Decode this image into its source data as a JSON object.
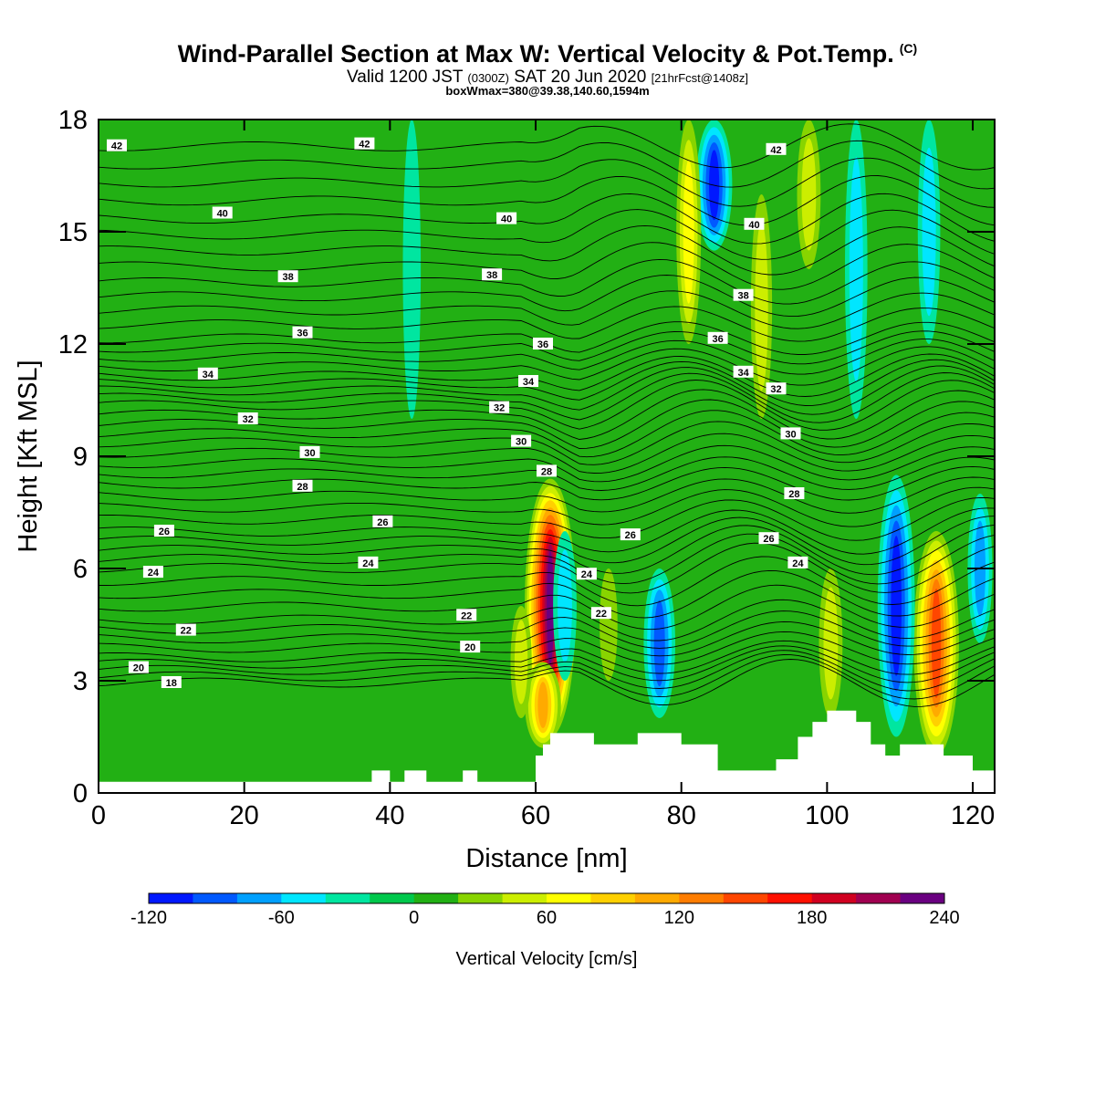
{
  "header": {
    "title": "Wind-Parallel Section at Max W: Vertical Velocity & Pot.Temp.",
    "copyright": "(C)",
    "valid_prefix": "Valid 1200 JST",
    "valid_utc": "(0300Z)",
    "valid_date": "SAT 20 Jun 2020",
    "forecast": "[21hrFcst@1408z]",
    "box_info": "boxWmax=380@39.38,140.60,1594m"
  },
  "chart_data": {
    "type": "heatmap",
    "xlabel": "Distance [nm]",
    "ylabel": "Height [Kft MSL]",
    "xlim": [
      0,
      123
    ],
    "ylim": [
      0,
      18
    ],
    "x_ticks": [
      0,
      20,
      40,
      60,
      80,
      100,
      120
    ],
    "y_ticks": [
      0,
      3,
      6,
      9,
      12,
      15,
      18
    ],
    "colorbar": {
      "label": "Vertical Velocity [cm/s]",
      "ticks": [
        "-120",
        "-60",
        "0",
        "60",
        "120",
        "180",
        "240"
      ],
      "levels": [
        -120,
        -100,
        -80,
        -60,
        -40,
        -20,
        0,
        20,
        40,
        60,
        80,
        100,
        120,
        140,
        160,
        180,
        200,
        220,
        240
      ],
      "colors": [
        "#0018ff",
        "#0059ff",
        "#00a0ff",
        "#00e6ff",
        "#00e6a0",
        "#00c84c",
        "#22b014",
        "#88d400",
        "#ccee00",
        "#ffff00",
        "#ffd000",
        "#ffaa00",
        "#ff7d00",
        "#ff4600",
        "#ff1000",
        "#d00020",
        "#a00050",
        "#6a0080"
      ]
    },
    "background_value": 0,
    "features": [
      {
        "x": 62,
        "z_bottom": 1.5,
        "z_top": 8.4,
        "w": 235
      },
      {
        "x": 61,
        "z_bottom": 1.2,
        "z_top": 3.5,
        "w": 110
      },
      {
        "x": 115,
        "z_bottom": 1.0,
        "z_top": 7.0,
        "w": 150
      },
      {
        "x": 109.5,
        "z_bottom": 1.5,
        "z_top": 8.5,
        "w": -115
      },
      {
        "x": 84.5,
        "z_bottom": 14.5,
        "z_top": 18,
        "w": -110
      },
      {
        "x": 77,
        "z_bottom": 2.0,
        "z_top": 6.0,
        "w": -90
      },
      {
        "x": 64,
        "z_bottom": 3.0,
        "z_top": 7.0,
        "w": -55
      },
      {
        "x": 81,
        "z_bottom": 12.0,
        "z_top": 18,
        "w": 60
      },
      {
        "x": 91,
        "z_bottom": 10.0,
        "z_top": 16.0,
        "w": 45
      },
      {
        "x": 100.5,
        "z_bottom": 2.0,
        "z_top": 6.0,
        "w": 55
      },
      {
        "x": 97.5,
        "z_bottom": 14.0,
        "z_top": 18,
        "w": 55
      },
      {
        "x": 104,
        "z_bottom": 10.0,
        "z_top": 18,
        "w": -50
      },
      {
        "x": 114,
        "z_bottom": 12.0,
        "z_top": 18,
        "w": -50
      },
      {
        "x": 43,
        "z_bottom": 10.0,
        "z_top": 18,
        "w": -30
      },
      {
        "x": 70,
        "z_bottom": 3.0,
        "z_top": 6.0,
        "w": 30
      },
      {
        "x": 58,
        "z_bottom": 2.0,
        "z_top": 5.0,
        "w": 45
      },
      {
        "x": 121,
        "z_bottom": 4.0,
        "z_top": 8.0,
        "w": -60
      }
    ],
    "terrain": [
      [
        0,
        0.3
      ],
      [
        37.5,
        0.3
      ],
      [
        37.5,
        0.6
      ],
      [
        40,
        0.6
      ],
      [
        40,
        0.3
      ],
      [
        42,
        0.3
      ],
      [
        42,
        0.6
      ],
      [
        45,
        0.6
      ],
      [
        45,
        0.3
      ],
      [
        50,
        0.3
      ],
      [
        50,
        0.6
      ],
      [
        52,
        0.6
      ],
      [
        52,
        0.3
      ],
      [
        60,
        0.3
      ],
      [
        60,
        1.0
      ],
      [
        61,
        1.0
      ],
      [
        61,
        1.3
      ],
      [
        62,
        1.3
      ],
      [
        62,
        1.6
      ],
      [
        68,
        1.6
      ],
      [
        68,
        1.3
      ],
      [
        74,
        1.3
      ],
      [
        74,
        1.6
      ],
      [
        80,
        1.6
      ],
      [
        80,
        1.3
      ],
      [
        85,
        1.3
      ],
      [
        85,
        0.6
      ],
      [
        93,
        0.6
      ],
      [
        93,
        0.9
      ],
      [
        96,
        0.9
      ],
      [
        96,
        1.5
      ],
      [
        98,
        1.5
      ],
      [
        98,
        1.9
      ],
      [
        100,
        1.9
      ],
      [
        100,
        2.2
      ],
      [
        104,
        2.2
      ],
      [
        104,
        1.9
      ],
      [
        106,
        1.9
      ],
      [
        106,
        1.3
      ],
      [
        108,
        1.3
      ],
      [
        108,
        1.0
      ],
      [
        110,
        1.0
      ],
      [
        110,
        1.3
      ],
      [
        116,
        1.3
      ],
      [
        116,
        1.0
      ],
      [
        120,
        1.0
      ],
      [
        120,
        0.6
      ],
      [
        123,
        0.6
      ]
    ],
    "theta_contour_labels": [
      {
        "text": "42",
        "x": 2.5,
        "y": 17.3
      },
      {
        "text": "42",
        "x": 36.5,
        "y": 17.35
      },
      {
        "text": "42",
        "x": 93,
        "y": 17.2
      },
      {
        "text": "40",
        "x": 17,
        "y": 15.5
      },
      {
        "text": "40",
        "x": 56,
        "y": 15.35
      },
      {
        "text": "40",
        "x": 90,
        "y": 15.2
      },
      {
        "text": "38",
        "x": 26,
        "y": 13.8
      },
      {
        "text": "38",
        "x": 54,
        "y": 13.85
      },
      {
        "text": "38",
        "x": 88.5,
        "y": 13.3
      },
      {
        "text": "36",
        "x": 28,
        "y": 12.3
      },
      {
        "text": "36",
        "x": 61,
        "y": 12.0
      },
      {
        "text": "36",
        "x": 85,
        "y": 12.15
      },
      {
        "text": "34",
        "x": 15,
        "y": 11.2
      },
      {
        "text": "34",
        "x": 59,
        "y": 11.0
      },
      {
        "text": "34",
        "x": 88.5,
        "y": 11.25
      },
      {
        "text": "32",
        "x": 20.5,
        "y": 10.0
      },
      {
        "text": "32",
        "x": 55,
        "y": 10.3
      },
      {
        "text": "32",
        "x": 93,
        "y": 10.8
      },
      {
        "text": "30",
        "x": 29,
        "y": 9.1
      },
      {
        "text": "30",
        "x": 58,
        "y": 9.4
      },
      {
        "text": "30",
        "x": 95,
        "y": 9.6
      },
      {
        "text": "28",
        "x": 28,
        "y": 8.2
      },
      {
        "text": "28",
        "x": 61.5,
        "y": 8.6
      },
      {
        "text": "28",
        "x": 95.5,
        "y": 8.0
      },
      {
        "text": "26",
        "x": 9,
        "y": 7.0
      },
      {
        "text": "26",
        "x": 39,
        "y": 7.25
      },
      {
        "text": "26",
        "x": 73,
        "y": 6.9
      },
      {
        "text": "26",
        "x": 92,
        "y": 6.8
      },
      {
        "text": "24",
        "x": 7.5,
        "y": 5.9
      },
      {
        "text": "24",
        "x": 37,
        "y": 6.15
      },
      {
        "text": "24",
        "x": 67,
        "y": 5.85
      },
      {
        "text": "24",
        "x": 96,
        "y": 6.15
      },
      {
        "text": "22",
        "x": 12,
        "y": 4.35
      },
      {
        "text": "22",
        "x": 50.5,
        "y": 4.75
      },
      {
        "text": "22",
        "x": 69,
        "y": 4.8
      },
      {
        "text": "20",
        "x": 5.5,
        "y": 3.35
      },
      {
        "text": "20",
        "x": 51,
        "y": 3.9
      },
      {
        "text": "18",
        "x": 10,
        "y": 2.95
      }
    ]
  }
}
